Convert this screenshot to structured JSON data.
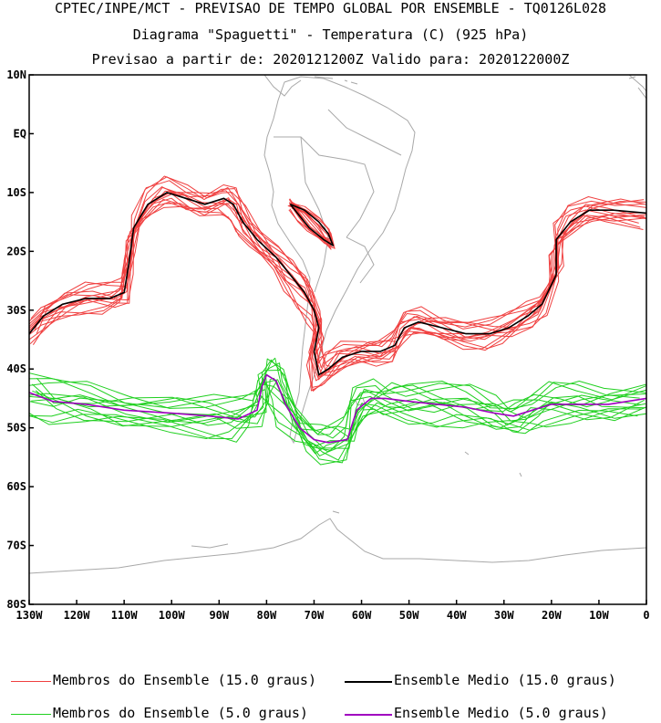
{
  "header": {
    "line1": "CPTEC/INPE/MCT - PREVISAO DE TEMPO GLOBAL POR ENSEMBLE - TQ0126L028",
    "line2": "Diagrama \"Spaguetti\" - Temperatura (C) (925 hPa)",
    "line3": "Previsao a partir de: 2020121200Z  Valido para: 2020122000Z"
  },
  "map": {
    "lat_labels": [
      "10N",
      "EQ",
      "10S",
      "20S",
      "30S",
      "40S",
      "50S",
      "60S",
      "70S",
      "80S"
    ],
    "lat_values": [
      10,
      0,
      -10,
      -20,
      -30,
      -40,
      -50,
      -60,
      -70,
      -80
    ],
    "lon_labels": [
      "130W",
      "120W",
      "110W",
      "100W",
      "90W",
      "80W",
      "70W",
      "60W",
      "50W",
      "40W",
      "30W",
      "20W",
      "10W",
      "0"
    ],
    "lon_values": [
      -130,
      -120,
      -110,
      -100,
      -90,
      -80,
      -70,
      -60,
      -50,
      -40,
      -30,
      -20,
      -10,
      0
    ],
    "lon_range": [
      -130,
      0
    ],
    "lat_range": [
      -80,
      10
    ],
    "colors": {
      "members_15": "#f04040",
      "mean_15": "#000000",
      "members_5": "#20d020",
      "mean_5": "#a000c0",
      "coast": "#a8a8a8"
    }
  },
  "legend": {
    "members_15": "Membros do Ensemble (15.0 graus)",
    "mean_15": "Ensemble Medio (15.0 graus)",
    "members_5": "Membros do Ensemble (5.0 graus)",
    "mean_5": "Ensemble Medio (5.0 graus)"
  }
}
